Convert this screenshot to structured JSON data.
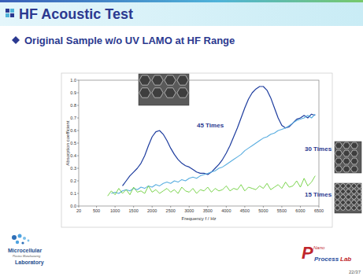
{
  "slide": {
    "title": "HF Acoustic Test",
    "subtitle": "Original Sample w/o UV LAMO at HF Range",
    "logo_left": [
      "Microcellular",
      "Plastics Manufacturing",
      "Laboratory"
    ],
    "logo_right": [
      "P",
      "Nano",
      "Process",
      "Lab"
    ],
    "page": "22/37"
  },
  "chart_data": {
    "type": "line",
    "x_label": "Frequency f / Hz",
    "y_label": "Absorption coefficient",
    "x": [
      800,
      900,
      1000,
      1100,
      1200,
      1300,
      1400,
      1500,
      1600,
      1700,
      1800,
      1900,
      2000,
      2100,
      2200,
      2300,
      2400,
      2500,
      2600,
      2700,
      2800,
      2900,
      3000,
      3100,
      3200,
      3300,
      3400,
      3500,
      3600,
      3700,
      3800,
      3900,
      4000,
      4100,
      4200,
      4300,
      4400,
      4500,
      4600,
      4700,
      4800,
      4900,
      5000,
      5100,
      5200,
      5300,
      5400,
      5500,
      5600,
      5700,
      5800,
      5900,
      6000,
      6100,
      6200,
      6300,
      6400
    ],
    "series": [
      {
        "name": "45 Times",
        "color": "#1d3c9e",
        "values": [
          null,
          null,
          null,
          null,
          0.16,
          0.2,
          0.24,
          0.27,
          0.3,
          0.34,
          0.4,
          0.48,
          0.55,
          0.59,
          0.6,
          0.57,
          0.52,
          0.46,
          0.41,
          0.37,
          0.34,
          0.32,
          0.31,
          0.29,
          0.27,
          0.26,
          0.26,
          0.25,
          0.27,
          0.3,
          0.33,
          0.37,
          0.42,
          0.48,
          0.55,
          0.62,
          0.7,
          0.78,
          0.85,
          0.9,
          0.93,
          0.95,
          0.95,
          0.92,
          0.86,
          0.78,
          0.7,
          0.64,
          0.62,
          0.63,
          0.66,
          0.69,
          0.7,
          0.72,
          0.7,
          0.73,
          0.72
        ]
      },
      {
        "name": "30 Times",
        "color": "#5aaee0",
        "values": [
          null,
          0.1,
          0.11,
          0.1,
          0.12,
          0.13,
          0.12,
          0.14,
          0.13,
          0.15,
          0.14,
          0.16,
          0.15,
          0.17,
          0.16,
          0.18,
          0.19,
          0.18,
          0.2,
          0.19,
          0.21,
          0.2,
          0.22,
          0.23,
          0.22,
          0.24,
          0.25,
          0.26,
          0.27,
          0.28,
          0.3,
          0.31,
          0.33,
          0.35,
          0.37,
          0.39,
          0.41,
          0.44,
          0.46,
          0.48,
          0.5,
          0.52,
          0.54,
          0.55,
          0.57,
          0.58,
          0.6,
          0.61,
          0.62,
          0.64,
          0.66,
          0.68,
          0.69,
          0.7,
          0.72,
          0.7,
          0.73
        ]
      },
      {
        "name": "15 Times",
        "color": "#6ccf3a",
        "values": [
          0.08,
          0.12,
          0.09,
          0.14,
          0.1,
          0.13,
          0.09,
          0.15,
          0.11,
          0.12,
          0.1,
          0.16,
          0.11,
          0.13,
          0.1,
          0.12,
          0.14,
          0.11,
          0.13,
          0.1,
          0.15,
          0.12,
          0.11,
          0.14,
          0.1,
          0.13,
          0.12,
          0.15,
          0.11,
          0.14,
          0.12,
          0.13,
          0.16,
          0.12,
          0.14,
          0.13,
          0.17,
          0.12,
          0.15,
          0.14,
          0.13,
          0.16,
          0.14,
          0.18,
          0.13,
          0.15,
          0.17,
          0.14,
          0.19,
          0.15,
          0.16,
          0.2,
          0.15,
          0.22,
          0.16,
          0.19,
          0.24
        ]
      }
    ],
    "xlim": [
      20,
      6500
    ],
    "xticks": [
      20,
      500,
      1000,
      1500,
      2000,
      2500,
      3000,
      3500,
      4000,
      4500,
      5000,
      5500,
      6000,
      6500
    ],
    "ylim": [
      0,
      1
    ],
    "yticks": [
      {
        "value": 0,
        "label": "0.0"
      },
      0.1,
      0.2,
      0.3,
      0.4,
      0.5,
      0.6,
      0.7,
      0.8,
      0.9,
      {
        "value": 1,
        "label": "1.0"
      }
    ],
    "grid": false
  }
}
